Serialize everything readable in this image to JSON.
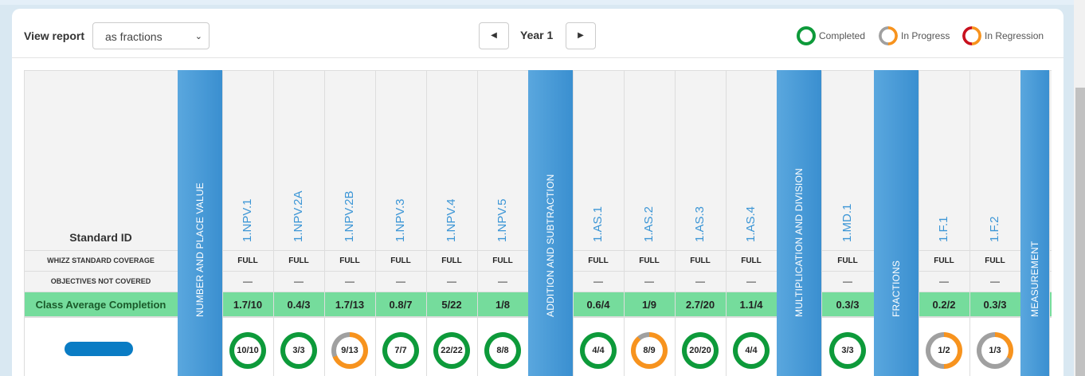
{
  "toolbar": {
    "view_report_label": "View report",
    "view_report_value": "as fractions",
    "year_label": "Year 1",
    "prev_symbol": "◀",
    "next_symbol": "▶"
  },
  "legend": [
    {
      "label": "Completed",
      "color": "#0d9a3a"
    },
    {
      "label": "In Progress",
      "color": "#f7931e"
    },
    {
      "label": "In Regression",
      "color": "#c8101e"
    }
  ],
  "table": {
    "standard_id_header": "Standard ID",
    "row_coverage_label": "WHIZZ STANDARD COVERAGE",
    "row_objectives_label": "OBJECTIVES NOT COVERED",
    "row_average_label": "Class Average Completion",
    "categories": [
      "NUMBER AND PLACE VALUE",
      "ADDITION AND SUBTRACTION",
      "MULTIPLICATION AND DIVISION",
      "FRACTIONS",
      "MEASUREMENT"
    ],
    "standards": [
      {
        "id": "1.NPV.1",
        "coverage": "FULL",
        "not_covered": "—",
        "average": "1.7/10",
        "ring": "10/10",
        "progress": 1.0
      },
      {
        "id": "1.NPV.2A",
        "coverage": "FULL",
        "not_covered": "—",
        "average": "0.4/3",
        "ring": "3/3",
        "progress": 1.0
      },
      {
        "id": "1.NPV.2B",
        "coverage": "FULL",
        "not_covered": "—",
        "average": "1.7/13",
        "ring": "9/13",
        "progress": 0.69
      },
      {
        "id": "1.NPV.3",
        "coverage": "FULL",
        "not_covered": "—",
        "average": "0.8/7",
        "ring": "7/7",
        "progress": 1.0
      },
      {
        "id": "1.NPV.4",
        "coverage": "FULL",
        "not_covered": "—",
        "average": "5/22",
        "ring": "22/22",
        "progress": 1.0
      },
      {
        "id": "1.NPV.5",
        "coverage": "FULL",
        "not_covered": "—",
        "average": "1/8",
        "ring": "8/8",
        "progress": 1.0
      },
      {
        "id": "1.AS.1",
        "coverage": "FULL",
        "not_covered": "—",
        "average": "0.6/4",
        "ring": "4/4",
        "progress": 1.0
      },
      {
        "id": "1.AS.2",
        "coverage": "FULL",
        "not_covered": "—",
        "average": "1/9",
        "ring": "8/9",
        "progress": 0.89
      },
      {
        "id": "1.AS.3",
        "coverage": "FULL",
        "not_covered": "—",
        "average": "2.7/20",
        "ring": "20/20",
        "progress": 1.0
      },
      {
        "id": "1.AS.4",
        "coverage": "FULL",
        "not_covered": "—",
        "average": "1.1/4",
        "ring": "4/4",
        "progress": 1.0
      },
      {
        "id": "1.MD.1",
        "coverage": "FULL",
        "not_covered": "—",
        "average": "0.3/3",
        "ring": "3/3",
        "progress": 1.0
      },
      {
        "id": "1.F.1",
        "coverage": "FULL",
        "not_covered": "—",
        "average": "0.2/2",
        "ring": "1/2",
        "progress": 0.5
      },
      {
        "id": "1.F.2",
        "coverage": "FULL",
        "not_covered": "—",
        "average": "0.3/3",
        "ring": "1/3",
        "progress": 0.33
      }
    ]
  },
  "colors": {
    "completed": "#0d9a3a",
    "in_progress": "#f7931e",
    "remaining": "#a0a0a0",
    "category": "#3a8fd0",
    "average_row": "#75dc9c",
    "id_link": "#3c96d6"
  }
}
